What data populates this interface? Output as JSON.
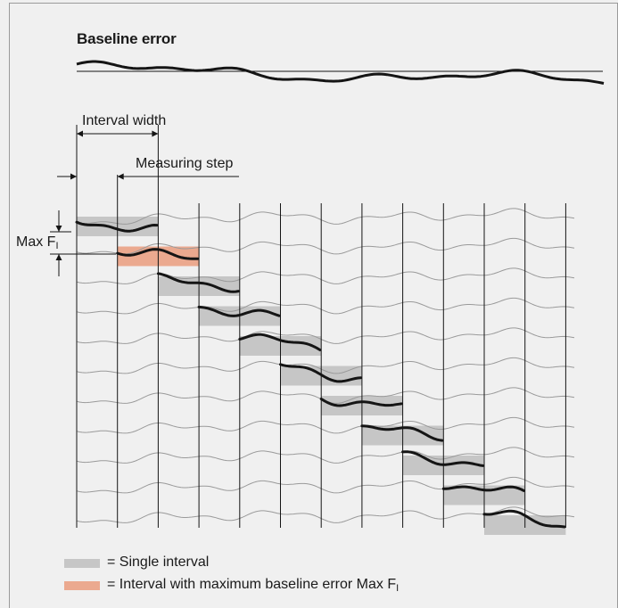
{
  "title": "Baseline error",
  "labels": {
    "interval_width": "Interval width",
    "measuring_step": "Measuring step",
    "max_prefix": "Max F",
    "max_subscript": "I"
  },
  "legend": {
    "single": {
      "text": "= Single interval",
      "color": "#c6c6c6"
    },
    "max": {
      "text_prefix": "= Interval with maximum baseline error Max F",
      "text_subscript": "I",
      "color": "#eba98f"
    }
  },
  "colors": {
    "background": "#f0f0f0",
    "thin_line": "#9a9a9a",
    "thick_line": "#151515",
    "single_interval": "#c6c6c6",
    "max_interval": "#eba98f"
  },
  "intervals": {
    "count": 11,
    "max_index": 1
  }
}
